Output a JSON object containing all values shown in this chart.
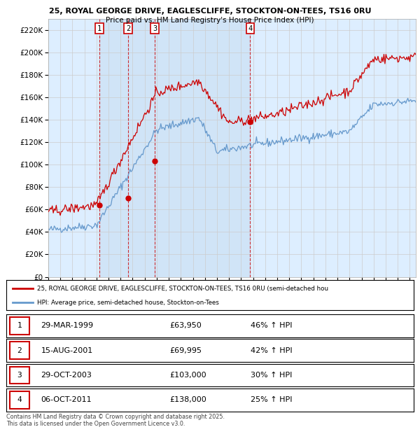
{
  "title_line1": "25, ROYAL GEORGE DRIVE, EAGLESCLIFFE, STOCKTON-ON-TEES, TS16 0RU",
  "title_line2": "Price paid vs. HM Land Registry's House Price Index (HPI)",
  "ylim": [
    0,
    230000
  ],
  "yticks": [
    0,
    20000,
    40000,
    60000,
    80000,
    100000,
    120000,
    140000,
    160000,
    180000,
    200000,
    220000
  ],
  "xlim_start": 1995,
  "xlim_end": 2025.5,
  "sale_dates": [
    1999.24,
    2001.62,
    2003.83,
    2011.76
  ],
  "sale_prices": [
    63950,
    69995,
    103000,
    138000
  ],
  "sale_labels": [
    "1",
    "2",
    "3",
    "4"
  ],
  "legend_red": "25, ROYAL GEORGE DRIVE, EAGLESCLIFFE, STOCKTON-ON-TEES, TS16 0RU (semi-detached hou",
  "legend_blue": "HPI: Average price, semi-detached house, Stockton-on-Tees",
  "table_rows": [
    [
      "1",
      "29-MAR-1999",
      "£63,950",
      "46% ↑ HPI"
    ],
    [
      "2",
      "15-AUG-2001",
      "£69,995",
      "42% ↑ HPI"
    ],
    [
      "3",
      "29-OCT-2003",
      "£103,000",
      "30% ↑ HPI"
    ],
    [
      "4",
      "06-OCT-2011",
      "£138,000",
      "25% ↑ HPI"
    ]
  ],
  "footer": "Contains HM Land Registry data © Crown copyright and database right 2025.\nThis data is licensed under the Open Government Licence v3.0.",
  "red_color": "#cc0000",
  "blue_color": "#6699cc",
  "shade_color": "#d0e4f7",
  "grid_color": "#cccccc",
  "plot_bg": "#ddeeff",
  "fig_bg": "#ffffff"
}
